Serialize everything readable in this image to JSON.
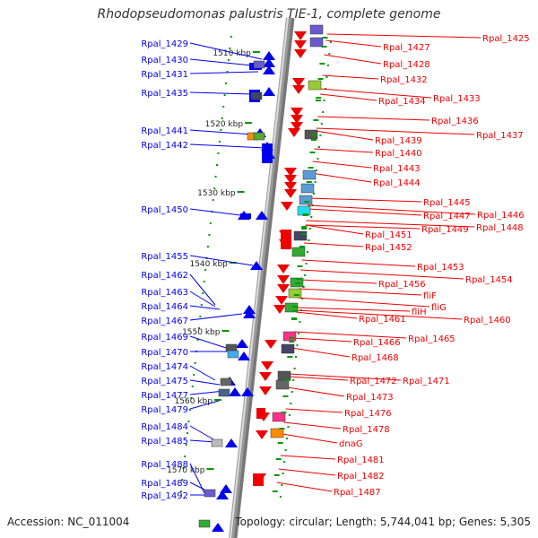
{
  "title": "Rhodopseudomonas palustris TIE-1, complete genome",
  "footer": {
    "accession": "Accession: NC_011004",
    "stats": "Topology: circular; Length: 5,744,041 bp; Genes: 5,305"
  },
  "scale_labels": [
    "1510 kbp",
    "1520 kbp",
    "1530 kbp",
    "1540 kbp",
    "1550 kbp",
    "1560 kbp",
    "1570 kbp"
  ],
  "left_genes": [
    "Rpal_1429",
    "Rpal_1430",
    "Rpal_1431",
    "Rpal_1435",
    "Rpal_1441",
    "Rpal_1442",
    "Rpal_1450",
    "Rpal_1455",
    "Rpal_1462",
    "Rpal_1463",
    "Rpal_1464",
    "Rpal_1467",
    "Rpal_1469",
    "Rpal_1470",
    "Rpal_1474",
    "Rpal_1475",
    "Rpal_1477",
    "Rpal_1479",
    "Rpal_1484",
    "Rpal_1485",
    "Rpal_1488",
    "Rpal_1489",
    "Rpal_1492"
  ],
  "right_genes": [
    "Rpal_1425",
    "Rpal_1427",
    "Rpal_1428",
    "Rpal_1432",
    "Rpal_1434",
    "Rpal_1433",
    "Rpal_1436",
    "Rpal_1437",
    "Rpal_1439",
    "Rpal_1440",
    "Rpal_1443",
    "Rpal_1444",
    "Rpal_1445",
    "Rpal_1447",
    "Rpal_1446",
    "Rpal_1449",
    "Rpal_1448",
    "Rpal_1451",
    "Rpal_1452",
    "Rpal_1453",
    "Rpal_1454",
    "Rpal_1456",
    "fliF",
    "fliG",
    "fliH",
    "Rpal_1461",
    "Rpal_1460",
    "Rpal_1466",
    "Rpal_1465",
    "Rpal_1468",
    "Rpal_1472",
    "Rpal_1471",
    "Rpal_1473",
    "Rpal_1476",
    "Rpal_1478",
    "dnaG",
    "Rpal_1481",
    "Rpal_1482",
    "Rpal_1487"
  ],
  "colors": {
    "forward": "#0000ee",
    "reverse": "#ee0000",
    "backbone": "#999999",
    "tick": "#009900"
  }
}
